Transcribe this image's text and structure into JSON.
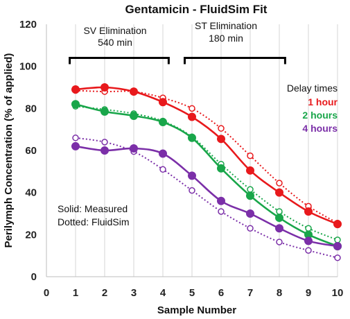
{
  "chart_data": {
    "type": "line",
    "title": "Gentamicin - FluidSim Fit",
    "xlabel": "Sample Number",
    "ylabel": "Perilymph Concentration (% of applied)",
    "xlim": [
      0,
      10
    ],
    "ylim": [
      0,
      120
    ],
    "x_ticks": [
      0,
      1,
      2,
      3,
      4,
      5,
      6,
      7,
      8,
      9,
      10
    ],
    "y_ticks": [
      0,
      20,
      40,
      60,
      80,
      100,
      120
    ],
    "grid": "vertical",
    "x": [
      1,
      2,
      3,
      4,
      5,
      6,
      7,
      8,
      9,
      10
    ],
    "series": [
      {
        "name": "1 hour",
        "color": "#e8191c",
        "measured": [
          89,
          90,
          88,
          83,
          76,
          65.5,
          50.5,
          40,
          31,
          25
        ],
        "fluidsim": [
          88.5,
          88,
          88,
          85,
          80,
          70.5,
          57.5,
          44.5,
          33.5,
          25.5
        ]
      },
      {
        "name": "2 hours",
        "color": "#19a64a",
        "measured": [
          82,
          78.5,
          76.5,
          73.5,
          66,
          51.5,
          38.5,
          28,
          20,
          14.5
        ],
        "fluidsim": [
          81,
          79.5,
          77.5,
          74,
          66.5,
          53.5,
          41.5,
          31,
          23,
          17.5
        ]
      },
      {
        "name": "4 hours",
        "color": "#7b2fa8",
        "measured": [
          62,
          60,
          61,
          58.5,
          48,
          36,
          30,
          23,
          17,
          14.5
        ],
        "fluidsim": [
          66,
          64,
          59.5,
          51,
          41,
          31,
          23,
          16.5,
          12.5,
          9
        ]
      }
    ],
    "annotations": {
      "sv_line1": "SV Elimination",
      "sv_line2": "540 min",
      "st_line1": "ST Elimination",
      "st_line2": "180 min",
      "solid_label": "Solid: Measured",
      "dotted_label": "Dotted: FluidSim",
      "delay_title": "Delay times"
    }
  }
}
